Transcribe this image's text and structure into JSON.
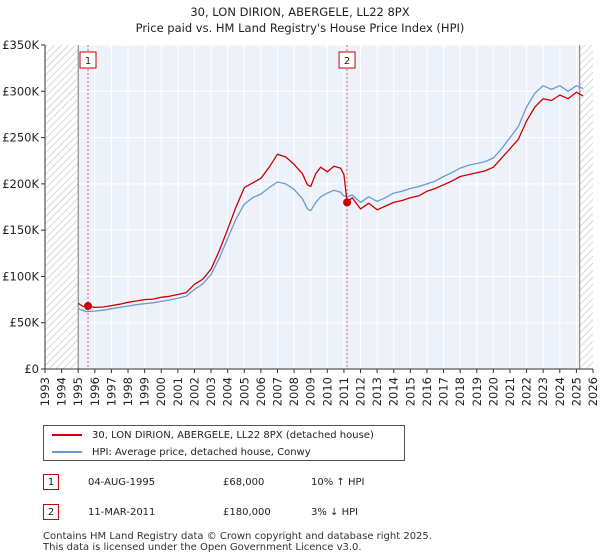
{
  "title_line1": "30, LON DIRION, ABERGELE, LL22 8PX",
  "title_line2": "Price paid vs. HM Land Registry's House Price Index (HPI)",
  "chart_data": {
    "type": "line",
    "xlim": [
      1993.0,
      2026.0
    ],
    "ylim": [
      0,
      350000
    ],
    "y_ticks": [
      0,
      50000,
      100000,
      150000,
      200000,
      250000,
      300000,
      350000
    ],
    "y_tick_labels": [
      "£0",
      "£50K",
      "£100K",
      "£150K",
      "£200K",
      "£250K",
      "£300K",
      "£350K"
    ],
    "x_ticks": [
      1993,
      1994,
      1995,
      1996,
      1997,
      1998,
      1999,
      2000,
      2001,
      2002,
      2003,
      2004,
      2005,
      2006,
      2007,
      2008,
      2009,
      2010,
      2011,
      2012,
      2013,
      2014,
      2015,
      2016,
      2017,
      2018,
      2019,
      2020,
      2021,
      2022,
      2023,
      2024,
      2025,
      2026
    ],
    "grid": true,
    "hatched_regions": [
      [
        1993.0,
        1995.0
      ],
      [
        2025.2,
        2026.0
      ]
    ],
    "series": [
      {
        "name": "30, LON DIRION, ABERGELE, LL22 8PX (detached house)",
        "color": "#cc0000",
        "points": [
          [
            1995.0,
            71000
          ],
          [
            1995.3,
            67500
          ],
          [
            1995.59,
            68000
          ],
          [
            1996.0,
            66500
          ],
          [
            1996.5,
            67000
          ],
          [
            1997.0,
            68500
          ],
          [
            1997.5,
            70000
          ],
          [
            1998.0,
            72000
          ],
          [
            1998.5,
            73500
          ],
          [
            1999.0,
            75000
          ],
          [
            1999.5,
            75500
          ],
          [
            2000.0,
            77500
          ],
          [
            2000.5,
            78500
          ],
          [
            2001.0,
            80500
          ],
          [
            2001.5,
            82500
          ],
          [
            2002.0,
            91500
          ],
          [
            2002.5,
            97000
          ],
          [
            2003.0,
            108000
          ],
          [
            2003.5,
            128000
          ],
          [
            2004.0,
            151000
          ],
          [
            2004.5,
            175000
          ],
          [
            2005.0,
            196000
          ],
          [
            2005.5,
            201000
          ],
          [
            2006.0,
            206000
          ],
          [
            2006.5,
            218000
          ],
          [
            2007.0,
            232000
          ],
          [
            2007.5,
            229000
          ],
          [
            2008.0,
            221000
          ],
          [
            2008.5,
            211000
          ],
          [
            2008.8,
            199000
          ],
          [
            2009.0,
            197000
          ],
          [
            2009.3,
            211000
          ],
          [
            2009.6,
            218000
          ],
          [
            2010.0,
            213000
          ],
          [
            2010.4,
            219000
          ],
          [
            2010.8,
            217000
          ],
          [
            2011.0,
            210000
          ],
          [
            2011.19,
            180000
          ],
          [
            2011.5,
            185000
          ],
          [
            2012.0,
            173000
          ],
          [
            2012.5,
            179000
          ],
          [
            2013.0,
            172000
          ],
          [
            2013.5,
            176000
          ],
          [
            2014.0,
            180000
          ],
          [
            2014.5,
            182000
          ],
          [
            2015.0,
            185000
          ],
          [
            2015.5,
            187000
          ],
          [
            2016.0,
            192000
          ],
          [
            2016.5,
            195000
          ],
          [
            2017.0,
            199000
          ],
          [
            2017.5,
            203000
          ],
          [
            2018.0,
            208000
          ],
          [
            2018.5,
            210000
          ],
          [
            2019.0,
            212000
          ],
          [
            2019.5,
            214000
          ],
          [
            2020.0,
            218000
          ],
          [
            2020.5,
            228000
          ],
          [
            2021.0,
            238000
          ],
          [
            2021.5,
            248000
          ],
          [
            2022.0,
            268000
          ],
          [
            2022.5,
            283000
          ],
          [
            2023.0,
            292000
          ],
          [
            2023.5,
            290000
          ],
          [
            2024.0,
            296000
          ],
          [
            2024.5,
            292000
          ],
          [
            2025.0,
            299000
          ],
          [
            2025.4,
            295000
          ]
        ]
      },
      {
        "name": "HPI: Average price, detached house, Conwy",
        "color": "#6a9ad4",
        "points": [
          [
            1995.0,
            65000
          ],
          [
            1995.5,
            62000
          ],
          [
            1996.0,
            62500
          ],
          [
            1996.5,
            63500
          ],
          [
            1997.0,
            65000
          ],
          [
            1997.5,
            66500
          ],
          [
            1998.0,
            68000
          ],
          [
            1998.5,
            69500
          ],
          [
            1999.0,
            70500
          ],
          [
            1999.5,
            71500
          ],
          [
            2000.0,
            73000
          ],
          [
            2000.5,
            74500
          ],
          [
            2001.0,
            76500
          ],
          [
            2001.5,
            78500
          ],
          [
            2002.0,
            86000
          ],
          [
            2002.5,
            92000
          ],
          [
            2003.0,
            102000
          ],
          [
            2003.5,
            120000
          ],
          [
            2004.0,
            141000
          ],
          [
            2004.5,
            162000
          ],
          [
            2005.0,
            178000
          ],
          [
            2005.5,
            185000
          ],
          [
            2006.0,
            189000
          ],
          [
            2006.5,
            196000
          ],
          [
            2007.0,
            202000
          ],
          [
            2007.5,
            200000
          ],
          [
            2008.0,
            194000
          ],
          [
            2008.5,
            184000
          ],
          [
            2008.8,
            173000
          ],
          [
            2009.0,
            171000
          ],
          [
            2009.3,
            180000
          ],
          [
            2009.6,
            186000
          ],
          [
            2010.0,
            190000
          ],
          [
            2010.4,
            193000
          ],
          [
            2010.8,
            191000
          ],
          [
            2011.0,
            187000
          ],
          [
            2011.19,
            186000
          ],
          [
            2011.5,
            188000
          ],
          [
            2012.0,
            180000
          ],
          [
            2012.5,
            186000
          ],
          [
            2013.0,
            181000
          ],
          [
            2013.5,
            185000
          ],
          [
            2014.0,
            190000
          ],
          [
            2014.5,
            192000
          ],
          [
            2015.0,
            195000
          ],
          [
            2015.5,
            197000
          ],
          [
            2016.0,
            200000
          ],
          [
            2016.5,
            203000
          ],
          [
            2017.0,
            208000
          ],
          [
            2017.5,
            212000
          ],
          [
            2018.0,
            217000
          ],
          [
            2018.5,
            220000
          ],
          [
            2019.0,
            222000
          ],
          [
            2019.5,
            224000
          ],
          [
            2020.0,
            228000
          ],
          [
            2020.5,
            238000
          ],
          [
            2021.0,
            250000
          ],
          [
            2021.5,
            262000
          ],
          [
            2022.0,
            283000
          ],
          [
            2022.5,
            298000
          ],
          [
            2023.0,
            306000
          ],
          [
            2023.5,
            302000
          ],
          [
            2024.0,
            306000
          ],
          [
            2024.5,
            300000
          ],
          [
            2025.0,
            306000
          ],
          [
            2025.4,
            303000
          ]
        ]
      }
    ],
    "markers": [
      {
        "label": "1",
        "x": 1995.59,
        "y": 68000
      },
      {
        "label": "2",
        "x": 2011.19,
        "y": 180000
      }
    ]
  },
  "legend": [
    {
      "label": "30, LON DIRION, ABERGELE, LL22 8PX (detached house)",
      "color": "#cc0000"
    },
    {
      "label": "HPI: Average price, detached house, Conwy",
      "color": "#6a9ad4"
    }
  ],
  "transactions": [
    {
      "num": "1",
      "date": "04-AUG-1995",
      "price": "£68,000",
      "hpi": "10% ↑ HPI"
    },
    {
      "num": "2",
      "date": "11-MAR-2011",
      "price": "£180,000",
      "hpi": "3% ↓ HPI"
    }
  ],
  "footer_line1": "Contains HM Land Registry data © Crown copyright and database right 2025.",
  "footer_line2": "This data is licensed under the Open Government Licence v3.0."
}
